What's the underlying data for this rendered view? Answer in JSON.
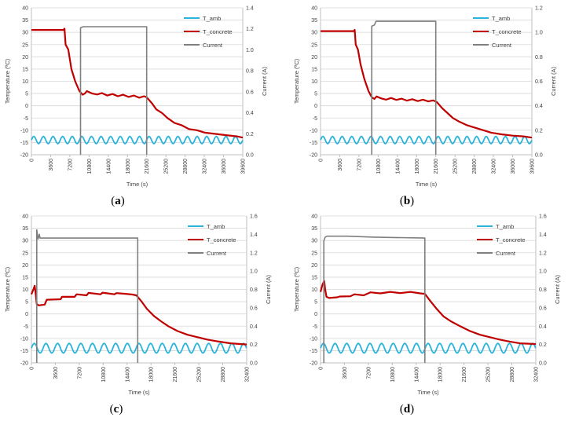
{
  "colors": {
    "T_amb": "#2ab4dc",
    "T_concrete": "#c00000",
    "Current": "#7f7f7f",
    "grid": "#d9d9d9",
    "axis": "#bfbfbf"
  },
  "chart_data": [
    {
      "type": "line",
      "caption": "a",
      "xlabel": "Time (s)",
      "ylabel": "Temperature (ºC)",
      "y2label": "Current (A)",
      "xlim": [
        0,
        39600
      ],
      "xticks": [
        0,
        3600,
        7200,
        10800,
        14400,
        18000,
        21600,
        25200,
        28800,
        32400,
        36000,
        39600
      ],
      "ylim": [
        -20,
        40
      ],
      "yticks": [
        -20,
        -15,
        -10,
        -5,
        0,
        5,
        10,
        15,
        20,
        25,
        30,
        35,
        40
      ],
      "y2lim": [
        0,
        1.4
      ],
      "y2ticks": [
        "0.0",
        "0.2",
        "0.4",
        "0.6",
        "0.8",
        "1.0",
        "1.2",
        "1.4"
      ],
      "legend": [
        "T_amb",
        "T_concrete",
        "Current"
      ],
      "series": [
        {
          "name": "T_amb",
          "axis": "left",
          "osc": {
            "x0": 0,
            "x1": 39600,
            "period": 1800,
            "min": -15.5,
            "max": -12.5
          }
        },
        {
          "name": "T_concrete",
          "axis": "left",
          "points": [
            [
              0,
              31
            ],
            [
              6000,
              31
            ],
            [
              6200,
              31.5
            ],
            [
              6400,
              25
            ],
            [
              6900,
              23
            ],
            [
              7500,
              15
            ],
            [
              8200,
              10
            ],
            [
              9000,
              6
            ],
            [
              9600,
              4.5
            ],
            [
              10000,
              5
            ],
            [
              10400,
              6
            ],
            [
              11400,
              5
            ],
            [
              12300,
              4.6
            ],
            [
              13200,
              5.2
            ],
            [
              14200,
              4.2
            ],
            [
              15200,
              4.8
            ],
            [
              16200,
              3.9
            ],
            [
              17200,
              4.5
            ],
            [
              18200,
              3.6
            ],
            [
              19200,
              4.2
            ],
            [
              20200,
              3.3
            ],
            [
              21100,
              3.9
            ],
            [
              21600,
              3.5
            ],
            [
              22600,
              1
            ],
            [
              23400,
              -1.5
            ],
            [
              24500,
              -3
            ],
            [
              25500,
              -5
            ],
            [
              26800,
              -7
            ],
            [
              28200,
              -8
            ],
            [
              29500,
              -9.5
            ],
            [
              31000,
              -10
            ],
            [
              32500,
              -11
            ],
            [
              34500,
              -11.5
            ],
            [
              36500,
              -12
            ],
            [
              38500,
              -12.5
            ],
            [
              39600,
              -13
            ]
          ]
        },
        {
          "name": "Current",
          "axis": "right",
          "points": [
            [
              9200,
              0
            ],
            [
              9200,
              1.21
            ],
            [
              9700,
              1.22
            ],
            [
              21600,
              1.22
            ],
            [
              21600,
              0
            ]
          ]
        }
      ]
    },
    {
      "type": "line",
      "caption": "b",
      "xlabel": "Time (s)",
      "ylabel": "Temperature (ºC)",
      "y2label": "Current (A)",
      "xlim": [
        0,
        39600
      ],
      "xticks": [
        0,
        3600,
        7200,
        10800,
        14400,
        18000,
        21600,
        25200,
        28800,
        32400,
        36000,
        39600
      ],
      "ylim": [
        -20,
        40
      ],
      "yticks": [
        -20,
        -15,
        -10,
        -5,
        0,
        5,
        10,
        15,
        20,
        25,
        30,
        35,
        40
      ],
      "y2lim": [
        0,
        1.2
      ],
      "y2ticks": [
        "0.0",
        "0.2",
        "0.4",
        "0.6",
        "0.8",
        "1.0",
        "1.2"
      ],
      "legend": [
        "T_amb",
        "T_concrete",
        "Current"
      ],
      "series": [
        {
          "name": "T_amb",
          "axis": "left",
          "osc": {
            "x0": 0,
            "x1": 39600,
            "period": 1800,
            "min": -15.5,
            "max": -12.5
          }
        },
        {
          "name": "T_concrete",
          "axis": "left",
          "points": [
            [
              0,
              30.5
            ],
            [
              6200,
              30.5
            ],
            [
              6400,
              31
            ],
            [
              6600,
              25
            ],
            [
              7000,
              23
            ],
            [
              7500,
              17
            ],
            [
              8200,
              11
            ],
            [
              9000,
              6
            ],
            [
              9600,
              3.5
            ],
            [
              10100,
              2.8
            ],
            [
              10500,
              3.8
            ],
            [
              11400,
              3
            ],
            [
              12300,
              2.5
            ],
            [
              13200,
              3.2
            ],
            [
              14200,
              2.4
            ],
            [
              15200,
              2.9
            ],
            [
              16200,
              2.1
            ],
            [
              17200,
              2.7
            ],
            [
              18200,
              1.9
            ],
            [
              19200,
              2.5
            ],
            [
              20200,
              1.8
            ],
            [
              21100,
              2.2
            ],
            [
              21800,
              1.5
            ],
            [
              22800,
              -1
            ],
            [
              23800,
              -3
            ],
            [
              24800,
              -5
            ],
            [
              26000,
              -6.5
            ],
            [
              27500,
              -8
            ],
            [
              29000,
              -9
            ],
            [
              30500,
              -10
            ],
            [
              32000,
              -11
            ],
            [
              34000,
              -11.7
            ],
            [
              36000,
              -12.2
            ],
            [
              38000,
              -12.5
            ],
            [
              39600,
              -13
            ]
          ]
        },
        {
          "name": "Current",
          "axis": "right",
          "points": [
            [
              9600,
              0
            ],
            [
              9600,
              1.05
            ],
            [
              10100,
              1.06
            ],
            [
              10400,
              1.09
            ],
            [
              21600,
              1.09
            ],
            [
              21600,
              0
            ]
          ]
        }
      ]
    },
    {
      "type": "line",
      "caption": "c",
      "xlabel": "Time (s)",
      "ylabel": "Temperature (ºC)",
      "y2label": "Current (A)",
      "xlim": [
        0,
        32400
      ],
      "xticks": [
        0,
        3600,
        7200,
        10800,
        14400,
        18000,
        21600,
        25200,
        28800,
        32400
      ],
      "ylim": [
        -20,
        40
      ],
      "yticks": [
        -20,
        -15,
        -10,
        -5,
        0,
        5,
        10,
        15,
        20,
        25,
        30,
        35,
        40
      ],
      "y2lim": [
        0,
        1.6
      ],
      "y2ticks": [
        "0.0",
        "0.2",
        "0.4",
        "0.6",
        "0.8",
        "1.0",
        "1.2",
        "1.4",
        "1.6"
      ],
      "legend": [
        "T_amb",
        "T_concrete",
        "Current"
      ],
      "series": [
        {
          "name": "T_amb",
          "axis": "left",
          "osc": {
            "x0": 0,
            "x1": 32400,
            "period": 1750,
            "min": -16,
            "max": -12
          }
        },
        {
          "name": "T_concrete",
          "axis": "left",
          "points": [
            [
              0,
              8
            ],
            [
              300,
              10
            ],
            [
              500,
              11.5
            ],
            [
              650,
              8
            ],
            [
              800,
              4
            ],
            [
              1100,
              3.5
            ],
            [
              2000,
              3.8
            ],
            [
              2300,
              5.8
            ],
            [
              4400,
              6
            ],
            [
              4600,
              7
            ],
            [
              6500,
              7
            ],
            [
              6800,
              8
            ],
            [
              8300,
              7.6
            ],
            [
              8600,
              8.6
            ],
            [
              10400,
              8
            ],
            [
              10700,
              8.7
            ],
            [
              12500,
              8
            ],
            [
              12800,
              8.5
            ],
            [
              14200,
              8.2
            ],
            [
              15200,
              7.9
            ],
            [
              15800,
              7.6
            ],
            [
              16600,
              5
            ],
            [
              17400,
              2
            ],
            [
              18500,
              -1
            ],
            [
              19500,
              -3
            ],
            [
              20600,
              -5
            ],
            [
              22000,
              -7
            ],
            [
              23500,
              -8.5
            ],
            [
              25000,
              -9.5
            ],
            [
              26500,
              -10.5
            ],
            [
              28000,
              -11.2
            ],
            [
              30000,
              -12
            ],
            [
              32400,
              -12.5
            ]
          ]
        },
        {
          "name": "Current",
          "axis": "right",
          "points": [
            [
              800,
              0
            ],
            [
              800,
              1.45
            ],
            [
              1000,
              1.35
            ],
            [
              1200,
              1.4
            ],
            [
              1300,
              1.36
            ],
            [
              1500,
              1.36
            ],
            [
              16000,
              1.36
            ],
            [
              16000,
              0
            ]
          ]
        }
      ]
    },
    {
      "type": "line",
      "caption": "d",
      "xlabel": "Time (s)",
      "ylabel": "Temperature (ºC)",
      "y2label": "Current (A)",
      "xlim": [
        0,
        32400
      ],
      "xticks": [
        0,
        3600,
        7200,
        10800,
        14400,
        18000,
        21600,
        25200,
        28800,
        32400
      ],
      "ylim": [
        -20,
        40
      ],
      "yticks": [
        -20,
        -15,
        -10,
        -5,
        0,
        5,
        10,
        15,
        20,
        25,
        30,
        35,
        40
      ],
      "y2lim": [
        0,
        1.6
      ],
      "y2ticks": [
        "0.0",
        "0.2",
        "0.4",
        "0.6",
        "0.8",
        "1.0",
        "1.2",
        "1.4",
        "1.6"
      ],
      "legend": [
        "T_amb",
        "T_concrete",
        "Current"
      ],
      "series": [
        {
          "name": "T_amb",
          "axis": "left",
          "osc": {
            "x0": 0,
            "x1": 32400,
            "period": 1750,
            "min": -16,
            "max": -12
          }
        },
        {
          "name": "T_concrete",
          "axis": "left",
          "points": [
            [
              0,
              9
            ],
            [
              300,
              12
            ],
            [
              550,
              13.5
            ],
            [
              700,
              10
            ],
            [
              900,
              7
            ],
            [
              1300,
              6.5
            ],
            [
              2500,
              6.8
            ],
            [
              2900,
              7.1
            ],
            [
              4500,
              7.2
            ],
            [
              5100,
              8
            ],
            [
              6500,
              7.6
            ],
            [
              7500,
              8.8
            ],
            [
              9000,
              8.4
            ],
            [
              10500,
              9
            ],
            [
              12000,
              8.5
            ],
            [
              13500,
              9
            ],
            [
              15000,
              8.4
            ],
            [
              15700,
              8.2
            ],
            [
              16600,
              5
            ],
            [
              17500,
              2
            ],
            [
              18500,
              -1
            ],
            [
              19600,
              -3
            ],
            [
              21000,
              -5
            ],
            [
              22500,
              -7
            ],
            [
              24000,
              -8.5
            ],
            [
              25500,
              -9.5
            ],
            [
              27000,
              -10.5
            ],
            [
              28500,
              -11.3
            ],
            [
              30000,
              -12
            ],
            [
              32400,
              -12.3
            ]
          ]
        },
        {
          "name": "Current",
          "axis": "right",
          "points": [
            [
              500,
              0
            ],
            [
              500,
              1.33
            ],
            [
              700,
              1.37
            ],
            [
              1000,
              1.38
            ],
            [
              4000,
              1.38
            ],
            [
              8000,
              1.37
            ],
            [
              15700,
              1.36
            ],
            [
              15700,
              0
            ]
          ]
        }
      ]
    }
  ]
}
